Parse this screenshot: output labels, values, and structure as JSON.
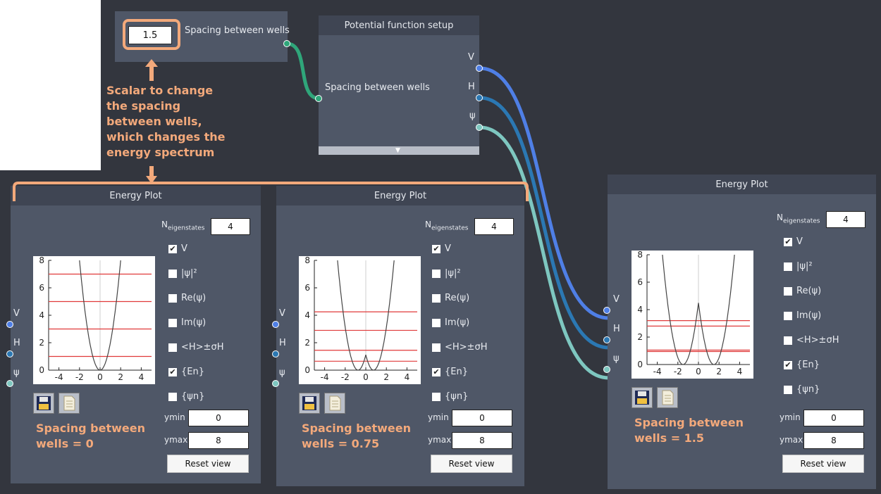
{
  "colors": {
    "accent": "#f3a97b",
    "wire_scalar": "#2fa67a",
    "wire_v": "#4f7fe6",
    "wire_h": "#2b78b3",
    "wire_psi": "#7ec7c0",
    "energy_line": "#e03a3a"
  },
  "scalar_node": {
    "value": "1.5",
    "output_label": "Spacing between wells"
  },
  "potential_node": {
    "title": "Potential function setup",
    "input_label": "Spacing between wells",
    "outputs": [
      "V",
      "H",
      "ψ"
    ]
  },
  "annotations": {
    "scalar": [
      "Scalar to change",
      "the spacing",
      "between wells,",
      "which changes the",
      "energy spectrum"
    ],
    "plot1": [
      "Spacing between",
      "wells = 0"
    ],
    "plot2": [
      "Spacing between",
      "wells = 0.75"
    ],
    "plot3": [
      "Spacing between",
      "wells = 1.5"
    ]
  },
  "energy_plot": {
    "title": "Energy Plot",
    "inputs": [
      "V",
      "H",
      "ψ"
    ],
    "n_label_main": "N",
    "n_label_sub": "eigenstates",
    "n_value": "4",
    "options": [
      {
        "label": "V",
        "checked": true
      },
      {
        "label": "|ψ|²",
        "checked": false
      },
      {
        "label": "Re(ψ)",
        "checked": false
      },
      {
        "label": "Im(ψ)",
        "checked": false
      },
      {
        "label": "<H>±σH",
        "checked": false
      },
      {
        "label": "{En}",
        "checked": true
      },
      {
        "label": "{ψn}",
        "checked": false
      }
    ],
    "ymin_label": "ymin",
    "ymin_value": "0",
    "ymax_label": "ymax",
    "ymax_value": "8",
    "reset_label": "Reset view",
    "save_icon": "floppy-disk-icon",
    "doc_icon": "document-icon"
  },
  "chart_data": [
    {
      "type": "line",
      "xlim": [
        -5,
        5
      ],
      "ylim": [
        0,
        8
      ],
      "xticks": [
        "-4",
        "-2",
        "0",
        "2",
        "4"
      ],
      "yticks": [
        "0",
        "2",
        "4",
        "6",
        "8"
      ],
      "well_spacing": 0,
      "energy_levels": [
        1,
        3,
        5,
        7
      ]
    },
    {
      "type": "line",
      "xlim": [
        -5,
        5
      ],
      "ylim": [
        0,
        8
      ],
      "xticks": [
        "-4",
        "-2",
        "0",
        "2",
        "4"
      ],
      "yticks": [
        "0",
        "2",
        "4",
        "6",
        "8"
      ],
      "well_spacing": 0.75,
      "energy_levels": [
        0.65,
        1.45,
        2.9,
        4.25
      ]
    },
    {
      "type": "line",
      "xlim": [
        -5,
        5
      ],
      "ylim": [
        0,
        8
      ],
      "xticks": [
        "-4",
        "-2",
        "0",
        "2",
        "4"
      ],
      "yticks": [
        "0",
        "2",
        "4",
        "6",
        "8"
      ],
      "well_spacing": 1.5,
      "energy_levels": [
        0.95,
        1.05,
        2.8,
        3.2
      ]
    }
  ]
}
